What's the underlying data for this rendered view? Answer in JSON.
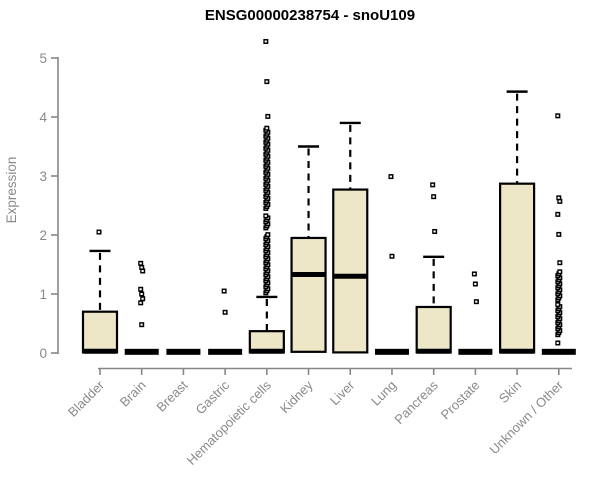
{
  "title": "ENSG00000238754 - snoU109",
  "chart_data": {
    "type": "boxplot",
    "title": "ENSG00000238754 - snoU109",
    "xlabel": "",
    "ylabel": "Expression",
    "ylim": [
      0,
      5
    ],
    "yticks": [
      "0",
      "1",
      "2",
      "3",
      "4",
      "5"
    ],
    "grid": false,
    "legend": "none",
    "categories": [
      "Bladder",
      "Brain",
      "Breast",
      "Gastric",
      "Hematopoietic cells",
      "Kidney",
      "Liver",
      "Lung",
      "Pancreas",
      "Prostate",
      "Skin",
      "Unknown / Other"
    ],
    "series": [
      {
        "label": "Bladder",
        "q1": 0.01,
        "median": 0.03,
        "q3": 0.7,
        "whisker_low": 0,
        "whisker_high": 1.73,
        "outliers": [
          2.05
        ],
        "dense_outlier_ranges": []
      },
      {
        "label": "Brain",
        "q1": 0,
        "median": 0.02,
        "q3": 0,
        "whisker_low": 0,
        "whisker_high": 0,
        "outliers": [
          1.52,
          1.45,
          1.39,
          1.08,
          1.0,
          0.92,
          0.85,
          0.48
        ],
        "dense_outlier_ranges": []
      },
      {
        "label": "Breast",
        "q1": 0,
        "median": 0.02,
        "q3": 0,
        "whisker_low": 0,
        "whisker_high": 0,
        "outliers": [],
        "dense_outlier_ranges": []
      },
      {
        "label": "Gastric",
        "q1": 0,
        "median": 0.02,
        "q3": 0,
        "whisker_low": 0,
        "whisker_high": 0,
        "outliers": [
          1.05,
          0.69
        ],
        "dense_outlier_ranges": []
      },
      {
        "label": "Hematopoietic cells",
        "q1": 0.01,
        "median": 0.03,
        "q3": 0.37,
        "whisker_low": 0,
        "whisker_high": 0.95,
        "outliers": [
          5.28,
          4.6,
          4.01
        ],
        "dense_outlier_ranges": [
          [
            1.02,
            2.02
          ],
          [
            2.12,
            2.33
          ],
          [
            2.45,
            3.84
          ]
        ]
      },
      {
        "label": "Kidney",
        "q1": 0.02,
        "median": 1.33,
        "q3": 1.95,
        "whisker_low": 0,
        "whisker_high": 3.5,
        "outliers": [],
        "dense_outlier_ranges": []
      },
      {
        "label": "Liver",
        "q1": 0.01,
        "median": 1.3,
        "q3": 2.77,
        "whisker_low": 0,
        "whisker_high": 3.9,
        "outliers": [],
        "dense_outlier_ranges": []
      },
      {
        "label": "Lung",
        "q1": 0,
        "median": 0.02,
        "q3": 0,
        "whisker_low": 0,
        "whisker_high": 0,
        "outliers": [
          2.99,
          1.64
        ],
        "dense_outlier_ranges": []
      },
      {
        "label": "Pancreas",
        "q1": 0.01,
        "median": 0.03,
        "q3": 0.78,
        "whisker_low": 0,
        "whisker_high": 1.63,
        "outliers": [
          2.85,
          2.65,
          2.06
        ],
        "dense_outlier_ranges": []
      },
      {
        "label": "Prostate",
        "q1": 0,
        "median": 0.02,
        "q3": 0,
        "whisker_low": 0,
        "whisker_high": 0,
        "outliers": [
          1.34,
          1.17,
          0.87
        ],
        "dense_outlier_ranges": []
      },
      {
        "label": "Skin",
        "q1": 0.01,
        "median": 0.03,
        "q3": 2.87,
        "whisker_low": 0,
        "whisker_high": 4.43,
        "outliers": [],
        "dense_outlier_ranges": []
      },
      {
        "label": "Unknown / Other",
        "q1": 0,
        "median": 0.02,
        "q3": 0,
        "whisker_low": 0,
        "whisker_high": 0,
        "outliers": [
          4.02,
          2.63,
          2.57,
          2.35,
          2.01,
          1.53,
          0.17
        ],
        "dense_outlier_ranges": [
          [
            0.31,
            0.85
          ],
          [
            0.9,
            1.38
          ]
        ]
      }
    ],
    "colors": {
      "box_fill": "#EDE7C8",
      "box_border": "#000000",
      "median": "#000000",
      "whisker": "#000000",
      "outlier": "#000000",
      "axis": "#878787",
      "tick_text": "#8A8A8A",
      "title_text": "#000000",
      "background": "#FFFFFF"
    }
  }
}
